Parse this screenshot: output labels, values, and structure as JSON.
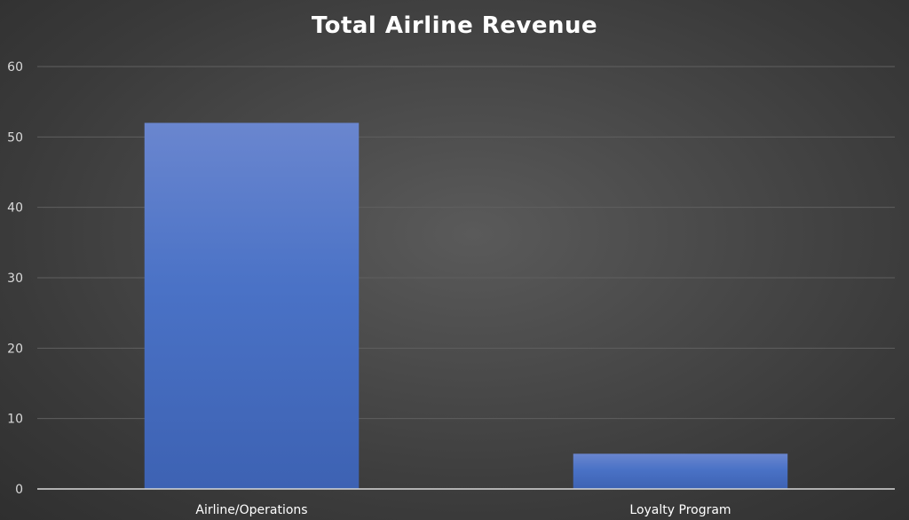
{
  "chart_data": {
    "type": "bar",
    "title": "Total Airline Revenue",
    "categories": [
      "Airline/Operations",
      "Loyalty Program"
    ],
    "values": [
      52,
      5
    ],
    "xlabel": "",
    "ylabel": "",
    "ylim": [
      0,
      60
    ],
    "yticks": [
      0,
      10,
      20,
      30,
      40,
      50,
      60
    ],
    "grid": true,
    "legend": "none",
    "colors": {
      "bar": "#4472c4",
      "background": "#404040",
      "gridline": "#5f5f5f",
      "axis": "#d9d9d9",
      "text": "#ffffff"
    }
  }
}
